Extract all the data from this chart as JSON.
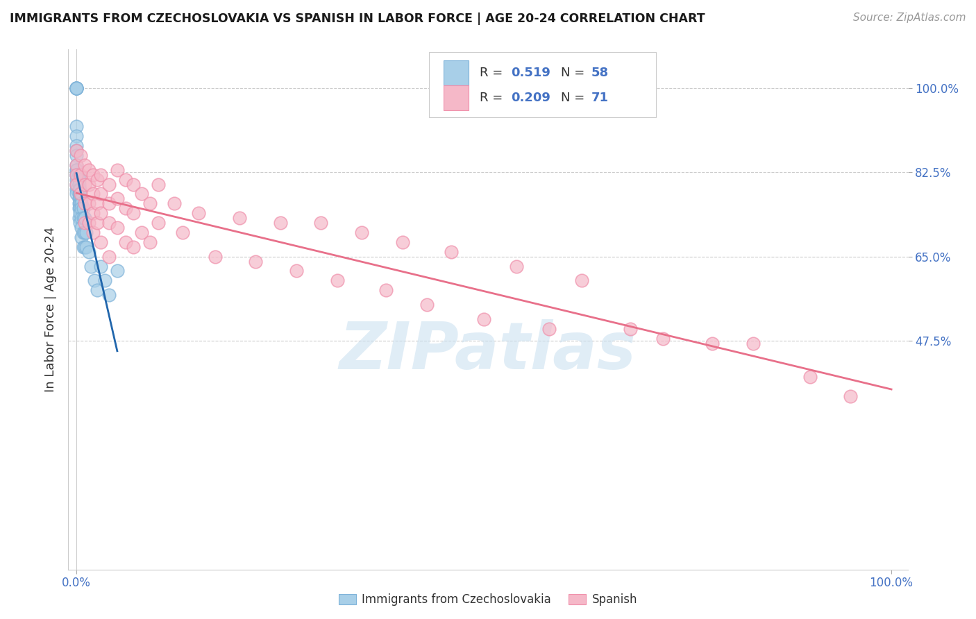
{
  "title": "IMMIGRANTS FROM CZECHOSLOVAKIA VS SPANISH IN LABOR FORCE | AGE 20-24 CORRELATION CHART",
  "source": "Source: ZipAtlas.com",
  "ylabel": "In Labor Force | Age 20-24",
  "ytick_positions": [
    0.475,
    0.65,
    0.825,
    1.0
  ],
  "ytick_labels": [
    "47.5%",
    "65.0%",
    "82.5%",
    "100.0%"
  ],
  "xtick_positions": [
    0.0,
    1.0
  ],
  "xtick_labels": [
    "0.0%",
    "100.0%"
  ],
  "watermark": "ZIPatlas",
  "blue_color": "#a8cfe8",
  "blue_edge_color": "#7fb3d9",
  "pink_color": "#f5b8c8",
  "pink_edge_color": "#f090ab",
  "blue_line_color": "#2166ac",
  "pink_line_color": "#e8708a",
  "tick_color": "#4472c4",
  "blue_scatter_x": [
    0.0,
    0.0,
    0.0,
    0.0,
    0.0,
    0.0,
    0.0,
    0.0,
    0.0,
    0.0,
    0.0,
    0.0,
    0.0,
    0.0,
    0.0,
    0.0,
    0.0,
    0.0,
    0.0,
    0.003,
    0.003,
    0.003,
    0.003,
    0.003,
    0.003,
    0.003,
    0.003,
    0.003,
    0.004,
    0.004,
    0.004,
    0.004,
    0.004,
    0.004,
    0.004,
    0.006,
    0.006,
    0.006,
    0.006,
    0.006,
    0.006,
    0.008,
    0.008,
    0.008,
    0.008,
    0.01,
    0.01,
    0.01,
    0.012,
    0.012,
    0.015,
    0.018,
    0.022,
    0.025,
    0.03,
    0.035,
    0.04,
    0.05
  ],
  "blue_scatter_y": [
    1.0,
    1.0,
    1.0,
    1.0,
    1.0,
    0.92,
    0.9,
    0.88,
    0.87,
    0.86,
    0.84,
    0.83,
    0.83,
    0.82,
    0.82,
    0.81,
    0.8,
    0.79,
    0.78,
    0.82,
    0.81,
    0.8,
    0.79,
    0.78,
    0.77,
    0.76,
    0.75,
    0.73,
    0.79,
    0.78,
    0.77,
    0.76,
    0.75,
    0.74,
    0.72,
    0.77,
    0.76,
    0.75,
    0.73,
    0.71,
    0.69,
    0.75,
    0.73,
    0.7,
    0.67,
    0.73,
    0.7,
    0.67,
    0.7,
    0.67,
    0.66,
    0.63,
    0.6,
    0.58,
    0.63,
    0.6,
    0.57,
    0.62
  ],
  "pink_scatter_x": [
    0.0,
    0.0,
    0.0,
    0.0,
    0.005,
    0.005,
    0.005,
    0.01,
    0.01,
    0.01,
    0.01,
    0.015,
    0.015,
    0.015,
    0.015,
    0.02,
    0.02,
    0.02,
    0.02,
    0.025,
    0.025,
    0.025,
    0.03,
    0.03,
    0.03,
    0.03,
    0.04,
    0.04,
    0.04,
    0.04,
    0.05,
    0.05,
    0.05,
    0.06,
    0.06,
    0.06,
    0.07,
    0.07,
    0.07,
    0.08,
    0.08,
    0.09,
    0.09,
    0.1,
    0.1,
    0.12,
    0.13,
    0.15,
    0.17,
    0.2,
    0.22,
    0.25,
    0.27,
    0.3,
    0.32,
    0.35,
    0.38,
    0.4,
    0.43,
    0.46,
    0.5,
    0.54,
    0.58,
    0.62,
    0.68,
    0.72,
    0.78,
    0.83,
    0.9,
    0.95
  ],
  "pink_scatter_y": [
    0.87,
    0.84,
    0.82,
    0.8,
    0.86,
    0.82,
    0.78,
    0.84,
    0.8,
    0.76,
    0.72,
    0.83,
    0.8,
    0.76,
    0.72,
    0.82,
    0.78,
    0.74,
    0.7,
    0.81,
    0.76,
    0.72,
    0.82,
    0.78,
    0.74,
    0.68,
    0.8,
    0.76,
    0.72,
    0.65,
    0.83,
    0.77,
    0.71,
    0.81,
    0.75,
    0.68,
    0.8,
    0.74,
    0.67,
    0.78,
    0.7,
    0.76,
    0.68,
    0.8,
    0.72,
    0.76,
    0.7,
    0.74,
    0.65,
    0.73,
    0.64,
    0.72,
    0.62,
    0.72,
    0.6,
    0.7,
    0.58,
    0.68,
    0.55,
    0.66,
    0.52,
    0.63,
    0.5,
    0.6,
    0.5,
    0.48,
    0.47,
    0.47,
    0.4,
    0.36
  ]
}
